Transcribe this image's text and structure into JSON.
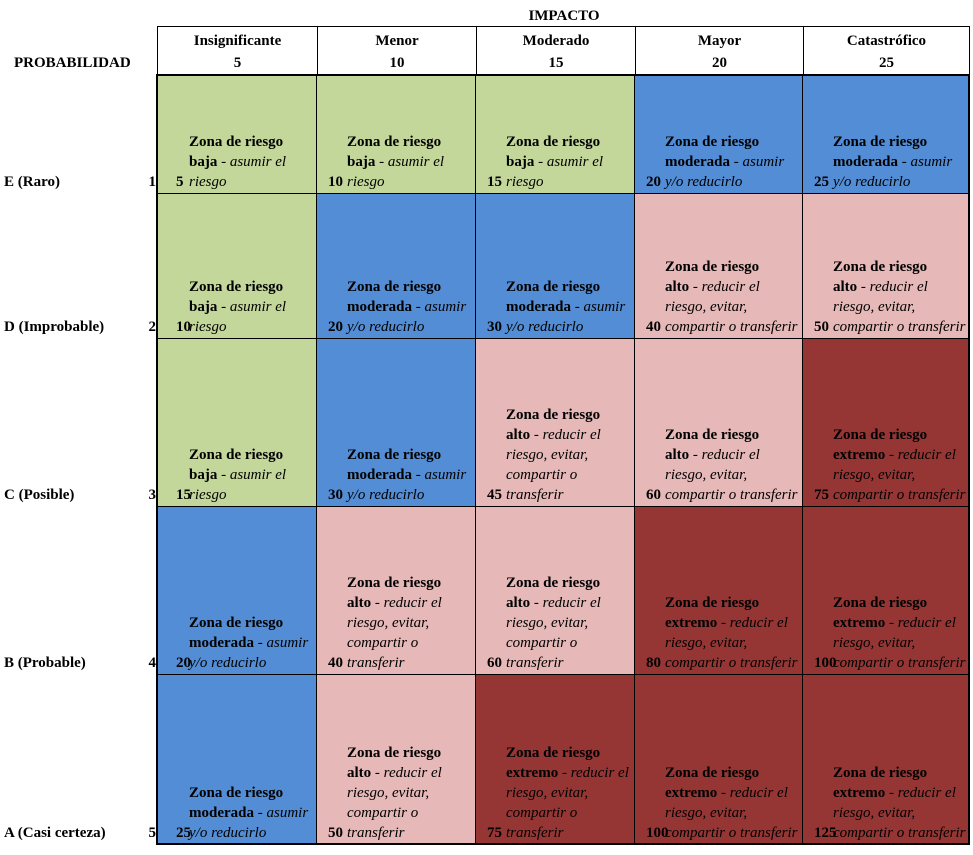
{
  "header": {
    "impacto_title": "IMPACTO",
    "probabilidad_label": "PROBABILIDAD"
  },
  "colors": {
    "baja": "#c4d79b",
    "moderada": "#538dd5",
    "alto": "#e6b8b7",
    "extremo": "#963634"
  },
  "impact_columns": [
    {
      "name": "Insignificante",
      "value": "5"
    },
    {
      "name": "Menor",
      "value": "10"
    },
    {
      "name": "Moderado",
      "value": "15"
    },
    {
      "name": "Mayor",
      "value": "20"
    },
    {
      "name": "Catastrófico",
      "value": "25"
    }
  ],
  "probability_rows": [
    {
      "label": "E (Raro)",
      "value": "1",
      "cells": [
        {
          "score": "5",
          "level": "baja",
          "zone_l1": "Zona de riesgo",
          "zone_l2": "baja",
          "action": " - asumir el riesgo"
        },
        {
          "score": "10",
          "level": "baja",
          "zone_l1": "Zona de riesgo",
          "zone_l2": "baja",
          "action": " - asumir el riesgo"
        },
        {
          "score": "15",
          "level": "baja",
          "zone_l1": "Zona de riesgo",
          "zone_l2": "baja",
          "action": " - asumir el riesgo"
        },
        {
          "score": "20",
          "level": "moderada",
          "zone_l1": "Zona de riesgo",
          "zone_l2": "moderada",
          "action": " - asumir y/o reducirlo"
        },
        {
          "score": "25",
          "level": "moderada",
          "zone_l1": "Zona de riesgo",
          "zone_l2": "moderada",
          "action": " - asumir y/o reducirlo"
        }
      ]
    },
    {
      "label": "D (Improbable)",
      "value": "2",
      "cells": [
        {
          "score": "10",
          "level": "baja",
          "zone_l1": "Zona de riesgo",
          "zone_l2": "baja",
          "action": " - asumir el riesgo"
        },
        {
          "score": "20",
          "level": "moderada",
          "zone_l1": "Zona de riesgo",
          "zone_l2": "moderada",
          "action": " - asumir y/o reducirlo"
        },
        {
          "score": "30",
          "level": "moderada",
          "zone_l1": "Zona de riesgo",
          "zone_l2": "moderada",
          "action": " - asumir y/o reducirlo"
        },
        {
          "score": "40",
          "level": "alto",
          "zone_l1": "Zona de riesgo",
          "zone_l2": "alto",
          "action": " - reducir el riesgo, evitar, compartir o transferir"
        },
        {
          "score": "50",
          "level": "alto",
          "zone_l1": "Zona de riesgo",
          "zone_l2": "alto",
          "action": " - reducir el riesgo, evitar, compartir o transferir"
        }
      ]
    },
    {
      "label": "C (Posible)",
      "value": "3",
      "cells": [
        {
          "score": "15",
          "level": "baja",
          "zone_l1": "Zona de riesgo",
          "zone_l2": "baja",
          "action": " - asumir el riesgo"
        },
        {
          "score": "30",
          "level": "moderada",
          "zone_l1": "Zona de riesgo",
          "zone_l2": "moderada",
          "action": " - asumir y/o reducirlo"
        },
        {
          "score": "45",
          "level": "alto",
          "zone_l1": "Zona de riesgo",
          "zone_l2": "alto",
          "action": " - reducir el riesgo, evitar, compartir o transferir"
        },
        {
          "score": "60",
          "level": "alto",
          "zone_l1": "Zona de riesgo",
          "zone_l2": "alto",
          "action": " - reducir el riesgo, evitar, compartir o transferir"
        },
        {
          "score": "75",
          "level": "extremo",
          "zone_l1": "Zona de riesgo",
          "zone_l2": "extremo",
          "action": " - reducir el riesgo, evitar, compartir o transferir"
        }
      ]
    },
    {
      "label": "B (Probable)",
      "value": "4",
      "cells": [
        {
          "score": "20",
          "level": "moderada",
          "zone_l1": "Zona de riesgo",
          "zone_l2": "moderada",
          "action": " - asumir y/o reducirlo"
        },
        {
          "score": "40",
          "level": "alto",
          "zone_l1": "Zona de riesgo",
          "zone_l2": "alto",
          "action": " - reducir el riesgo, evitar, compartir o transferir"
        },
        {
          "score": "60",
          "level": "alto",
          "zone_l1": "Zona de riesgo",
          "zone_l2": "alto",
          "action": " - reducir el riesgo, evitar, compartir o transferir"
        },
        {
          "score": "80",
          "level": "extremo",
          "zone_l1": "Zona de riesgo",
          "zone_l2": "extremo",
          "action": " - reducir el riesgo, evitar, compartir o transferir"
        },
        {
          "score": "100",
          "level": "extremo",
          "zone_l1": "Zona de riesgo",
          "zone_l2": "extremo",
          "action": " - reducir el riesgo, evitar, compartir o transferir"
        }
      ]
    },
    {
      "label": "A (Casi certeza)",
      "value": "5",
      "cells": [
        {
          "score": "25",
          "level": "moderada",
          "zone_l1": "Zona de riesgo",
          "zone_l2": "moderada",
          "action": " - asumir y/o reducirlo"
        },
        {
          "score": "50",
          "level": "alto",
          "zone_l1": "Zona de riesgo",
          "zone_l2": "alto",
          "action": " - reducir el riesgo, evitar, compartir o transferir"
        },
        {
          "score": "75",
          "level": "extremo",
          "zone_l1": "Zona de riesgo",
          "zone_l2": "extremo",
          "action": " - reducir el riesgo, evitar, compartir o transferir"
        },
        {
          "score": "100",
          "level": "extremo",
          "zone_l1": "Zona de riesgo",
          "zone_l2": "extremo",
          "action": " - reducir el riesgo, evitar, compartir o transferir"
        },
        {
          "score": "125",
          "level": "extremo",
          "zone_l1": "Zona de riesgo",
          "zone_l2": "extremo",
          "action": " - reducir el riesgo, evitar, compartir o transferir"
        }
      ]
    }
  ]
}
